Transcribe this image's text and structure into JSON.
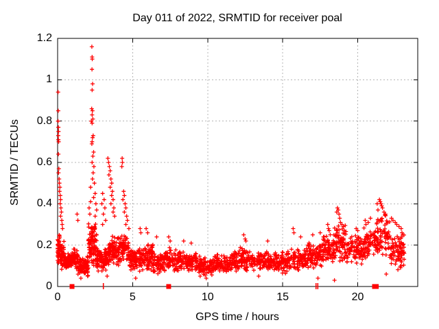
{
  "chart_data": {
    "type": "scatter",
    "title": "Day 011 of 2022, SRMTID for receiver poal",
    "xlabel": "GPS time / hours",
    "ylabel": "SRMTID / TECUs",
    "xlim": [
      0,
      24
    ],
    "ylim": [
      0,
      1.2
    ],
    "xticks": [
      0,
      5,
      10,
      15,
      20
    ],
    "xtick_labels": [
      "0",
      "5",
      "10",
      "15",
      "20"
    ],
    "yticks": [
      0,
      0.2,
      0.4,
      0.6,
      0.8,
      1,
      1.2
    ],
    "ytick_labels": [
      "0",
      "0.2",
      "0.4",
      "0.6",
      "0.8",
      "1",
      "1.2"
    ],
    "grid": true,
    "legend": "none",
    "marker": "plus",
    "marker_color": "#ff0000",
    "grid_color": "#b4b4b4",
    "axis_color": "#000000",
    "background": "#ffffff",
    "noise_seed": 20220111,
    "outlier_points": [
      [
        0.03,
        0.94
      ],
      [
        0.04,
        0.85
      ],
      [
        0.03,
        0.8
      ],
      [
        0.05,
        0.77
      ],
      [
        0.06,
        0.75
      ],
      [
        0.04,
        0.73
      ],
      [
        0.05,
        0.71
      ],
      [
        0.07,
        0.7
      ],
      [
        0.05,
        0.64
      ],
      [
        0.08,
        0.57
      ],
      [
        0.06,
        0.55
      ],
      [
        0.1,
        0.52
      ],
      [
        0.12,
        0.5
      ],
      [
        0.15,
        0.48
      ],
      [
        0.13,
        0.46
      ],
      [
        0.18,
        0.44
      ],
      [
        0.2,
        0.42
      ],
      [
        0.17,
        0.4
      ],
      [
        0.22,
        0.38
      ],
      [
        0.25,
        0.36
      ],
      [
        0.2,
        0.34
      ],
      [
        0.28,
        0.32
      ],
      [
        0.3,
        0.3
      ],
      [
        0.33,
        0.28
      ],
      [
        1.3,
        0.35
      ],
      [
        1.35,
        0.32
      ],
      [
        2.28,
        1.16
      ],
      [
        2.3,
        1.11
      ],
      [
        2.31,
        1.1
      ],
      [
        2.29,
        1.05
      ],
      [
        2.33,
        0.98
      ],
      [
        2.3,
        0.95
      ],
      [
        2.27,
        0.86
      ],
      [
        2.32,
        0.85
      ],
      [
        2.3,
        0.83
      ],
      [
        2.35,
        0.81
      ],
      [
        2.25,
        0.8
      ],
      [
        2.3,
        0.79
      ],
      [
        2.37,
        0.73
      ],
      [
        2.33,
        0.72
      ],
      [
        2.3,
        0.7
      ],
      [
        2.28,
        0.69
      ],
      [
        2.4,
        0.65
      ],
      [
        2.35,
        0.63
      ],
      [
        2.3,
        0.6
      ],
      [
        2.42,
        0.58
      ],
      [
        2.37,
        0.55
      ],
      [
        2.32,
        0.52
      ],
      [
        2.45,
        0.5
      ],
      [
        2.2,
        0.48
      ],
      [
        2.5,
        0.45
      ],
      [
        2.4,
        0.43
      ],
      [
        2.2,
        0.41
      ],
      [
        2.55,
        0.4
      ],
      [
        2.1,
        0.38
      ],
      [
        2.6,
        0.37
      ],
      [
        2.15,
        0.35
      ],
      [
        2.5,
        0.34
      ],
      [
        3.0,
        0.45
      ],
      [
        3.1,
        0.42
      ],
      [
        2.95,
        0.4
      ],
      [
        3.15,
        0.38
      ],
      [
        3.05,
        0.35
      ],
      [
        3.2,
        0.32
      ],
      [
        3.0,
        0.3
      ],
      [
        3.35,
        0.62
      ],
      [
        3.4,
        0.6
      ],
      [
        3.45,
        0.58
      ],
      [
        3.5,
        0.56
      ],
      [
        3.42,
        0.54
      ],
      [
        3.55,
        0.52
      ],
      [
        3.6,
        0.5
      ],
      [
        3.5,
        0.48
      ],
      [
        3.65,
        0.46
      ],
      [
        3.6,
        0.44
      ],
      [
        3.7,
        0.42
      ],
      [
        3.55,
        0.4
      ],
      [
        3.75,
        0.38
      ],
      [
        3.7,
        0.36
      ],
      [
        3.8,
        0.34
      ],
      [
        4.3,
        0.62
      ],
      [
        4.32,
        0.6
      ],
      [
        4.28,
        0.58
      ],
      [
        4.4,
        0.46
      ],
      [
        4.45,
        0.44
      ],
      [
        4.35,
        0.42
      ],
      [
        4.5,
        0.4
      ],
      [
        4.55,
        0.38
      ],
      [
        4.45,
        0.36
      ],
      [
        4.6,
        0.34
      ],
      [
        4.65,
        0.32
      ],
      [
        4.55,
        0.3
      ],
      [
        4.75,
        0.28
      ],
      [
        5.5,
        0.28
      ],
      [
        5.55,
        0.26
      ],
      [
        5.9,
        0.28
      ],
      [
        6.0,
        0.26
      ],
      [
        6.6,
        0.24
      ],
      [
        7.4,
        0.24
      ],
      [
        7.5,
        0.22
      ],
      [
        8.4,
        0.22
      ],
      [
        8.9,
        0.21
      ],
      [
        12.4,
        0.25
      ],
      [
        12.5,
        0.23
      ],
      [
        12.55,
        0.22
      ],
      [
        14.0,
        0.22
      ],
      [
        15.7,
        0.28
      ],
      [
        15.75,
        0.26
      ],
      [
        16.2,
        0.24
      ],
      [
        17.0,
        0.25
      ],
      [
        17.5,
        0.26
      ],
      [
        18.0,
        0.3
      ],
      [
        18.05,
        0.28
      ],
      [
        18.1,
        0.27
      ],
      [
        1.55,
        0.04
      ],
      [
        2.0,
        0.05
      ],
      [
        3.3,
        0.05
      ],
      [
        5.2,
        0.04
      ],
      [
        9.5,
        0.05
      ],
      [
        9.9,
        0.04
      ],
      [
        13.4,
        0.05
      ],
      [
        17.35,
        0.04
      ],
      [
        18.45,
        0.03
      ],
      [
        21.9,
        0.06
      ],
      [
        18.6,
        0.36
      ],
      [
        18.65,
        0.38
      ],
      [
        18.7,
        0.37
      ],
      [
        18.75,
        0.35
      ],
      [
        18.8,
        0.33
      ],
      [
        18.85,
        0.31
      ],
      [
        18.95,
        0.3
      ],
      [
        19.05,
        0.29
      ],
      [
        19.9,
        0.28
      ],
      [
        20.0,
        0.27
      ],
      [
        20.5,
        0.32
      ],
      [
        20.55,
        0.3
      ],
      [
        20.7,
        0.31
      ],
      [
        20.85,
        0.33
      ],
      [
        21.3,
        0.4
      ],
      [
        21.45,
        0.42
      ],
      [
        21.5,
        0.41
      ],
      [
        21.55,
        0.4
      ],
      [
        21.6,
        0.39
      ],
      [
        21.65,
        0.38
      ],
      [
        21.35,
        0.37
      ],
      [
        21.75,
        0.36
      ],
      [
        21.85,
        0.35
      ],
      [
        22.25,
        0.33
      ],
      [
        22.35,
        0.32
      ],
      [
        22.5,
        0.31
      ],
      [
        22.6,
        0.3
      ],
      [
        22.75,
        0.29
      ],
      [
        22.9,
        0.28
      ],
      [
        22.95,
        0.26
      ],
      [
        23.0,
        0.25
      ]
    ],
    "noise_bands": [
      {
        "h0": 0.0,
        "h1": 0.2,
        "n": 45,
        "center": 0.18,
        "spread": 0.08
      },
      {
        "h0": 0.2,
        "h1": 0.45,
        "n": 45,
        "center": 0.15,
        "spread": 0.07
      },
      {
        "h0": 0.45,
        "h1": 0.95,
        "n": 80,
        "center": 0.12,
        "spread": 0.05
      },
      {
        "h0": 0.95,
        "h1": 1.35,
        "n": 60,
        "center": 0.14,
        "spread": 0.06
      },
      {
        "h0": 1.35,
        "h1": 2.05,
        "n": 95,
        "center": 0.1,
        "spread": 0.05
      },
      {
        "h0": 2.05,
        "h1": 2.6,
        "n": 95,
        "center": 0.2,
        "spread": 0.12
      },
      {
        "h0": 2.6,
        "h1": 3.35,
        "n": 95,
        "center": 0.13,
        "spread": 0.06
      },
      {
        "h0": 3.35,
        "h1": 4.15,
        "n": 95,
        "center": 0.17,
        "spread": 0.08
      },
      {
        "h0": 4.15,
        "h1": 4.75,
        "n": 65,
        "center": 0.19,
        "spread": 0.08
      },
      {
        "h0": 4.75,
        "h1": 5.6,
        "n": 85,
        "center": 0.13,
        "spread": 0.06
      },
      {
        "h0": 5.6,
        "h1": 6.35,
        "n": 75,
        "center": 0.14,
        "spread": 0.07
      },
      {
        "h0": 6.35,
        "h1": 7.15,
        "n": 75,
        "center": 0.11,
        "spread": 0.05
      },
      {
        "h0": 7.15,
        "h1": 8.25,
        "n": 95,
        "center": 0.13,
        "spread": 0.06
      },
      {
        "h0": 8.25,
        "h1": 9.25,
        "n": 90,
        "center": 0.12,
        "spread": 0.05
      },
      {
        "h0": 9.25,
        "h1": 10.45,
        "n": 100,
        "center": 0.1,
        "spread": 0.05
      },
      {
        "h0": 10.45,
        "h1": 11.65,
        "n": 100,
        "center": 0.11,
        "spread": 0.05
      },
      {
        "h0": 11.65,
        "h1": 12.95,
        "n": 105,
        "center": 0.13,
        "spread": 0.06
      },
      {
        "h0": 12.95,
        "h1": 14.25,
        "n": 105,
        "center": 0.12,
        "spread": 0.05
      },
      {
        "h0": 14.25,
        "h1": 15.45,
        "n": 95,
        "center": 0.12,
        "spread": 0.06
      },
      {
        "h0": 15.45,
        "h1": 16.65,
        "n": 95,
        "center": 0.13,
        "spread": 0.06
      },
      {
        "h0": 16.65,
        "h1": 17.65,
        "n": 85,
        "center": 0.15,
        "spread": 0.07
      },
      {
        "h0": 17.65,
        "h1": 18.45,
        "n": 75,
        "center": 0.18,
        "spread": 0.08
      },
      {
        "h0": 18.45,
        "h1": 19.25,
        "n": 75,
        "center": 0.21,
        "spread": 0.1
      },
      {
        "h0": 19.25,
        "h1": 20.35,
        "n": 85,
        "center": 0.18,
        "spread": 0.08
      },
      {
        "h0": 20.35,
        "h1": 21.15,
        "n": 65,
        "center": 0.21,
        "spread": 0.08
      },
      {
        "h0": 21.15,
        "h1": 22.15,
        "n": 85,
        "center": 0.24,
        "spread": 0.11
      },
      {
        "h0": 22.15,
        "h1": 23.1,
        "n": 85,
        "center": 0.17,
        "spread": 0.09
      }
    ],
    "zero_square_marks": [
      0.96,
      7.4,
      21.12,
      21.24
    ],
    "zero_plus_marks": [
      3.05,
      17.22,
      17.34
    ]
  }
}
